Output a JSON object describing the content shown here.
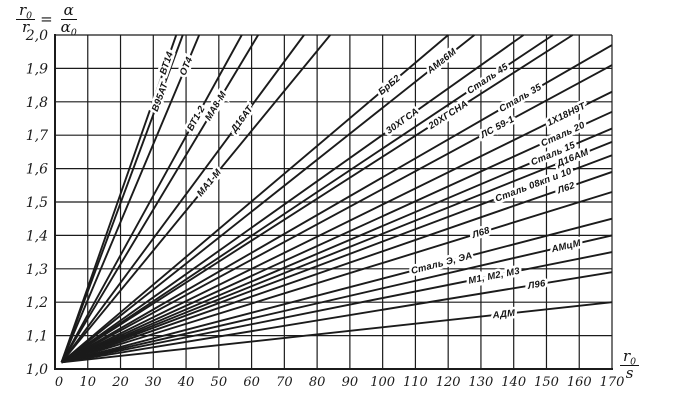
{
  "figure": {
    "background": "#ffffff",
    "ink": "#1b1b1b"
  },
  "axes": {
    "y_title": {
      "f1_num": "r",
      "f1_num_sub": "0",
      "f1_den": "r",
      "equals": "=",
      "f2_num": "α",
      "f2_den": "α",
      "f2_den_sub": "0"
    },
    "x_title": {
      "num": "r",
      "num_sub": "0",
      "den": "s"
    }
  },
  "chart_data": {
    "type": "line",
    "xlabel": "r0/s",
    "ylabel": "r0/r = α/α0",
    "xlim": [
      0,
      170
    ],
    "ylim": [
      1.0,
      2.0
    ],
    "grid": "on",
    "legend": "labels on lines",
    "x_ticks": [
      {
        "v": 0,
        "label": "0"
      },
      {
        "v": 10,
        "label": "10"
      },
      {
        "v": 20,
        "label": "20"
      },
      {
        "v": 30,
        "label": "30"
      },
      {
        "v": 40,
        "label": "40"
      },
      {
        "v": 50,
        "label": "50"
      },
      {
        "v": 60,
        "label": "60"
      },
      {
        "v": 70,
        "label": "70"
      },
      {
        "v": 80,
        "label": "80"
      },
      {
        "v": 90,
        "label": "90"
      },
      {
        "v": 100,
        "label": "100"
      },
      {
        "v": 110,
        "label": "110"
      },
      {
        "v": 120,
        "label": "120"
      },
      {
        "v": 130,
        "label": "130"
      },
      {
        "v": 140,
        "label": "140"
      },
      {
        "v": 150,
        "label": "150"
      },
      {
        "v": 160,
        "label": "160"
      },
      {
        "v": 170,
        "label": "170"
      }
    ],
    "y_ticks": [
      {
        "v": 2.0,
        "label": "2,0"
      },
      {
        "v": 1.9,
        "label": "1,9"
      },
      {
        "v": 1.8,
        "label": "1,8"
      },
      {
        "v": 1.7,
        "label": "1,7"
      },
      {
        "v": 1.6,
        "label": "1,6"
      },
      {
        "v": 1.5,
        "label": "1,5"
      },
      {
        "v": 1.4,
        "label": "1,4"
      },
      {
        "v": 1.3,
        "label": "1,3"
      },
      {
        "v": 1.2,
        "label": "1,2"
      },
      {
        "v": 1.1,
        "label": "1,1"
      },
      {
        "v": 1.0,
        "label": "1,0"
      }
    ],
    "series": [
      {
        "name": "ВТ14",
        "x1": 2,
        "y1": 1.02,
        "x2": 37,
        "y2": 2.0,
        "label_x": 34
      },
      {
        "name": "В95АТ",
        "x1": 2,
        "y1": 1.02,
        "x2": 39,
        "y2": 2.0,
        "label_x": 32
      },
      {
        "name": "ОТ4",
        "x1": 2,
        "y1": 1.02,
        "x2": 44,
        "y2": 2.0,
        "label_x": 40
      },
      {
        "name": "ВТ1-2",
        "x1": 2,
        "y1": 1.02,
        "x2": 57,
        "y2": 2.0,
        "label_x": 43
      },
      {
        "name": "МА8-М",
        "x1": 2,
        "y1": 1.02,
        "x2": 62,
        "y2": 2.0,
        "label_x": 49
      },
      {
        "name": "Д16АТ",
        "x1": 2,
        "y1": 1.02,
        "x2": 76,
        "y2": 2.0,
        "label_x": 57
      },
      {
        "name": "МА1-М",
        "x1": 2,
        "y1": 1.02,
        "x2": 84,
        "y2": 2.0,
        "label_x": 47
      },
      {
        "name": "БрБ2",
        "x1": 2,
        "y1": 1.02,
        "x2": 120,
        "y2": 2.0,
        "label_x": 102
      },
      {
        "name": "АМг6М",
        "x1": 2,
        "y1": 1.02,
        "x2": 128,
        "y2": 2.0,
        "label_x": 118
      },
      {
        "name": "30ХГСА",
        "x1": 2,
        "y1": 1.02,
        "x2": 143,
        "y2": 2.0,
        "label_x": 106
      },
      {
        "name": "Сталь 45",
        "x1": 2,
        "y1": 1.02,
        "x2": 152,
        "y2": 2.0,
        "label_x": 132
      },
      {
        "name": "20ХГСНА",
        "x1": 2,
        "y1": 1.02,
        "x2": 158,
        "y2": 2.0,
        "label_x": 120
      },
      {
        "name": "Сталь 35",
        "x1": 2,
        "y1": 1.02,
        "x2": 170,
        "y2": 1.97,
        "label_x": 142
      },
      {
        "name": "ЛС 59-1",
        "x1": 2,
        "y1": 1.02,
        "x2": 170,
        "y2": 1.91,
        "label_x": 135
      },
      {
        "name": "1Х18Н9Т",
        "x1": 2,
        "y1": 1.02,
        "x2": 170,
        "y2": 1.83,
        "label_x": 156
      },
      {
        "name": "Сталь 20",
        "x1": 2,
        "y1": 1.02,
        "x2": 170,
        "y2": 1.77,
        "label_x": 155
      },
      {
        "name": "Сталь 15",
        "x1": 2,
        "y1": 1.02,
        "x2": 170,
        "y2": 1.72,
        "label_x": 152
      },
      {
        "name": "Д16АМ",
        "x1": 2,
        "y1": 1.02,
        "x2": 170,
        "y2": 1.68,
        "label_x": 158
      },
      {
        "name": "Сталь 08кп и 10",
        "x1": 2,
        "y1": 1.02,
        "x2": 170,
        "y2": 1.64,
        "label_x": 146
      },
      {
        "name": "Л62",
        "x1": 2,
        "y1": 1.02,
        "x2": 170,
        "y2": 1.59,
        "label_x": 156
      },
      {
        "name": "Л68",
        "x1": 2,
        "y1": 1.02,
        "x2": 170,
        "y2": 1.53,
        "label_x": 130
      },
      {
        "name": "Сталь Э, ЭА",
        "x1": 2,
        "y1": 1.02,
        "x2": 170,
        "y2": 1.45,
        "label_x": 118
      },
      {
        "name": "АМцМ",
        "x1": 2,
        "y1": 1.02,
        "x2": 170,
        "y2": 1.4,
        "label_x": 156
      },
      {
        "name": "М1, М2, М3",
        "x1": 2,
        "y1": 1.02,
        "x2": 170,
        "y2": 1.35,
        "label_x": 134
      },
      {
        "name": "Л96",
        "x1": 2,
        "y1": 1.02,
        "x2": 170,
        "y2": 1.29,
        "label_x": 147
      },
      {
        "name": "АДМ",
        "x1": 2,
        "y1": 1.02,
        "x2": 170,
        "y2": 1.2,
        "label_x": 137
      }
    ]
  }
}
